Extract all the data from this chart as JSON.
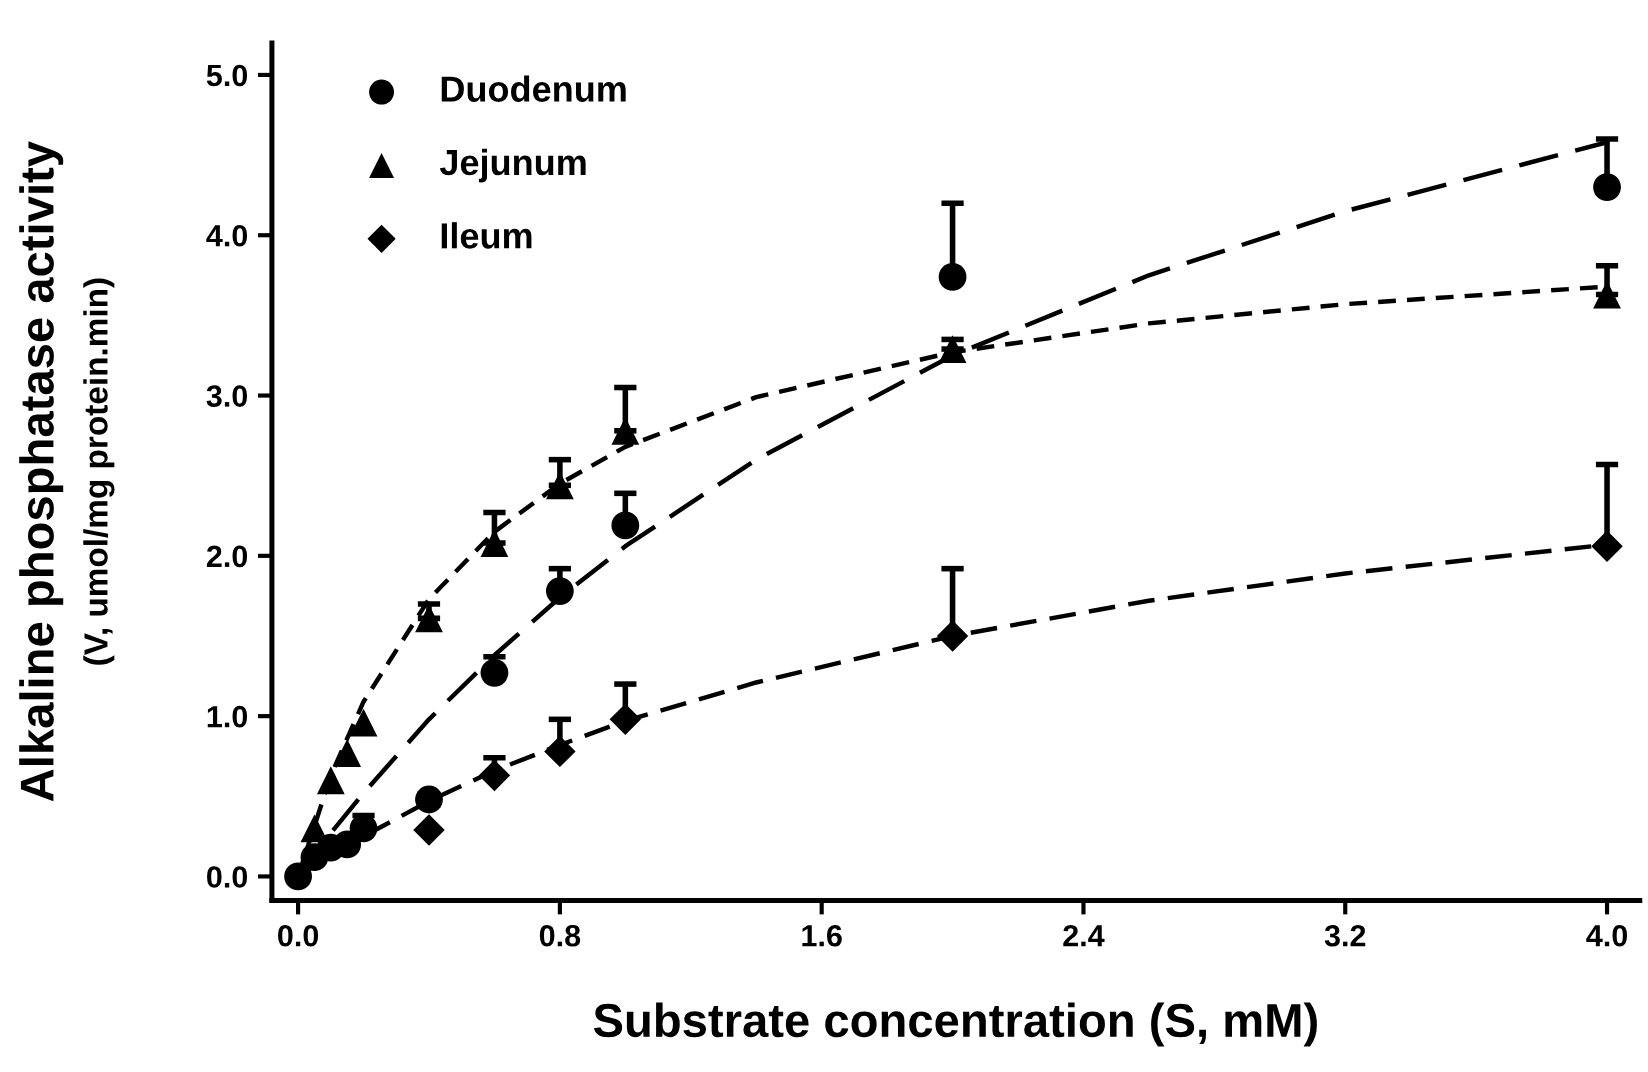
{
  "chart_data": {
    "type": "scatter",
    "xlabel": "Substrate concentration (S, mM)",
    "ylabel": "Alkaline phosphatase activity",
    "y2label": "(V, umol/mg protein.min)",
    "xlim": [
      -0.08,
      4.1
    ],
    "ylim": [
      -0.15,
      5.2
    ],
    "xticks": [
      {
        "value": 0,
        "label": "0.0"
      },
      {
        "value": 0.8,
        "label": "0.8"
      },
      {
        "value": 1.6,
        "label": "1.6"
      },
      {
        "value": 2.4,
        "label": "2.4"
      },
      {
        "value": 3.2,
        "label": "3.2"
      },
      {
        "value": 4,
        "label": "4.0"
      }
    ],
    "yticks": [
      {
        "value": 0,
        "label": "0.0"
      },
      {
        "value": 1,
        "label": "1.0"
      },
      {
        "value": 2,
        "label": "2.0"
      },
      {
        "value": 3,
        "label": "3.0"
      },
      {
        "value": 4,
        "label": "4.0"
      },
      {
        "value": 5,
        "label": "5.0"
      }
    ],
    "grid": false,
    "legend": "top left",
    "series": [
      {
        "name": "Duodenum",
        "marker": "circle",
        "color": "#000000",
        "x": [
          0,
          0.05,
          0.1,
          0.15,
          0.2,
          0.4,
          0.6,
          0.8,
          1.0,
          2.0,
          4.0
        ],
        "values": [
          0,
          0.12,
          0.18,
          0.2,
          0.3,
          0.48,
          1.27,
          1.78,
          2.19,
          3.74,
          4.3
        ],
        "errors": [
          null,
          null,
          null,
          null,
          [
            0.3,
            0.38
          ],
          null,
          [
            1.27,
            1.37
          ],
          [
            1.78,
            1.92
          ],
          [
            2.19,
            2.39
          ],
          [
            3.74,
            4.2
          ],
          [
            4.3,
            4.6
          ]
        ]
      },
      {
        "name": "Jejunum",
        "marker": "triangle",
        "color": "#000000",
        "x": [
          0.05,
          0.1,
          0.15,
          0.2,
          0.4,
          0.6,
          0.8,
          1.0,
          2.0,
          4.0
        ],
        "values": [
          0.3,
          0.6,
          0.77,
          0.96,
          1.61,
          2.08,
          2.44,
          2.78,
          3.29,
          3.63
        ],
        "errors": [
          null,
          null,
          null,
          null,
          [
            1.61,
            1.7
          ],
          [
            2.08,
            2.27
          ],
          [
            2.44,
            2.6
          ],
          [
            2.78,
            3.05
          ],
          [
            3.29,
            3.35
          ],
          [
            3.63,
            3.81
          ]
        ]
      },
      {
        "name": "Ileum",
        "marker": "diamond",
        "color": "#000000",
        "x": [
          0.4,
          0.6,
          0.8,
          1.0,
          2.0,
          4.0
        ],
        "values": [
          0.29,
          0.63,
          0.78,
          0.98,
          1.5,
          2.06
        ],
        "errors": [
          null,
          [
            0.63,
            0.74
          ],
          [
            0.78,
            0.98
          ],
          [
            0.98,
            1.2
          ],
          [
            1.5,
            1.92
          ],
          [
            2.06,
            2.57
          ]
        ]
      },
      {
        "type": "line",
        "line_style": "dashed",
        "color": "#000000",
        "x": [
          0,
          0.1,
          0.2,
          0.4,
          0.6,
          0.8,
          1.0,
          1.4,
          2.0,
          2.6,
          3.2,
          4.0
        ],
        "values": [
          0,
          0.27,
          0.52,
          0.98,
          1.38,
          1.74,
          2.06,
          2.6,
          3.25,
          3.75,
          4.15,
          4.58
        ]
      },
      {
        "type": "line",
        "line_style": "dashed",
        "color": "#000000",
        "x": [
          0,
          0.1,
          0.2,
          0.4,
          0.6,
          0.8,
          1.0,
          1.4,
          2.0,
          2.6,
          3.2,
          4.0
        ],
        "values": [
          0,
          0.63,
          1.09,
          1.73,
          2.15,
          2.45,
          2.68,
          2.99,
          3.27,
          3.45,
          3.57,
          3.68
        ]
      },
      {
        "type": "line",
        "line_style": "dashed",
        "color": "#000000",
        "x": [
          0,
          0.1,
          0.2,
          0.4,
          0.6,
          0.8,
          1.0,
          1.4,
          2.0,
          2.6,
          3.2,
          4.0
        ],
        "values": [
          0,
          0.13,
          0.25,
          0.47,
          0.66,
          0.82,
          0.97,
          1.21,
          1.5,
          1.72,
          1.89,
          2.07
        ]
      }
    ]
  }
}
